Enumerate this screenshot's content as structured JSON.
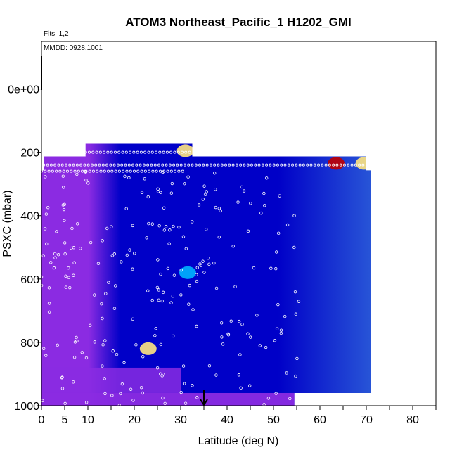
{
  "chart_data": {
    "type": "heatmap",
    "title": "ATOM3 Northeast_Pacific_1 H1202_GMI",
    "annotations": {
      "flights": "Flts: 1,2",
      "dates": "MMDD: 0928,1001"
    },
    "xlabel": "Latitude (deg N)",
    "ylabel": "PSXC (mbar)",
    "xlim": [
      0,
      85
    ],
    "ylim": [
      1000,
      -150
    ],
    "y_reversed": true,
    "x_ticks": [
      0,
      5,
      10,
      20,
      30,
      40,
      50,
      60,
      70,
      80
    ],
    "x_tick_labels": [
      "0",
      "5",
      "10",
      "20",
      "30",
      "40",
      "50",
      "60",
      "70",
      "80"
    ],
    "y_ticks": [
      0,
      200,
      400,
      600,
      800,
      1000
    ],
    "y_tick_labels": [
      "0e+00",
      "200",
      "400",
      "600",
      "800",
      "1000"
    ],
    "grid": false,
    "legend": "none",
    "marker_latitude": 35,
    "colors": {
      "low": "#8b2be2",
      "mid": "#0000c8",
      "high_mid": "#00b4ff",
      "high": "#ffe680",
      "max": "#c00000",
      "track_points": "#ffffff",
      "frame": "#000000"
    },
    "layers": [
      {
        "pressure": [
          173,
          213
        ],
        "lat": [
          9.5,
          32.5
        ]
      },
      {
        "pressure": [
          213,
          257
        ],
        "lat": [
          0.5,
          70
        ]
      },
      {
        "pressure": [
          257,
          960
        ],
        "lat": [
          0,
          71
        ]
      },
      {
        "pressure": [
          960,
          1000
        ],
        "lat": [
          0,
          54.5
        ]
      }
    ],
    "hot_spots": [
      {
        "lat": 31,
        "pressure": 195,
        "level": "high"
      },
      {
        "lat": 63.5,
        "pressure": 235,
        "level": "max"
      },
      {
        "lat": 69.5,
        "pressure": 235,
        "level": "high"
      },
      {
        "lat": 31.5,
        "pressure": 580,
        "level": "high_mid"
      },
      {
        "lat": 23,
        "pressure": 820,
        "level": "high"
      }
    ]
  }
}
